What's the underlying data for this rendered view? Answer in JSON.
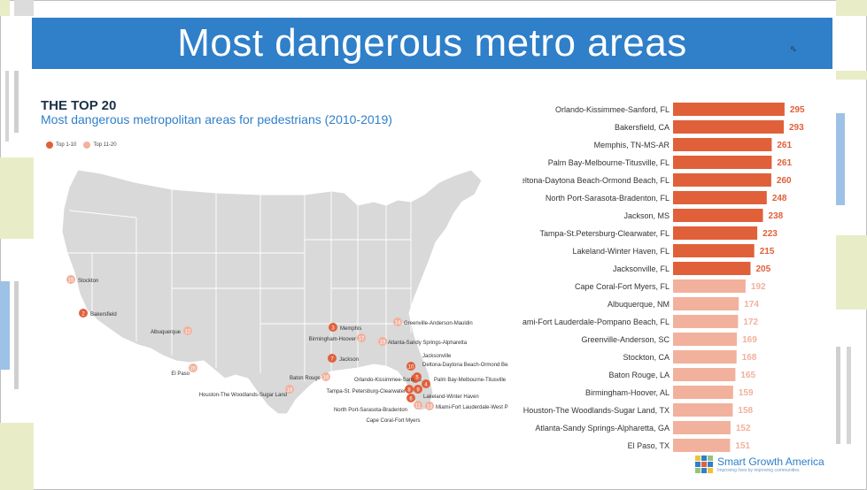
{
  "page": {
    "title": "Most dangerous metro areas",
    "heading": "THE TOP 20",
    "subheading": "Most dangerous metropolitan areas for pedestrians (2010-2019)",
    "legend": [
      {
        "label": "Top 1-10",
        "color": "#e0603a"
      },
      {
        "label": "Top 11-20",
        "color": "#f2b19c"
      }
    ],
    "logo": {
      "name": "Smart Growth America",
      "tagline": "Improving lives by improving communities"
    },
    "colors": {
      "title_bar": "#2f7fc9",
      "top10": "#e0603a",
      "top20": "#f2b19c",
      "map_fill": "#d9d9d9"
    }
  },
  "map": {
    "markers": [
      {
        "rank": "1",
        "label": "Orlando-Kissimmee-Sanford"
      },
      {
        "rank": "2",
        "label": "Bakersfield"
      },
      {
        "rank": "3",
        "label": "Memphis"
      },
      {
        "rank": "4",
        "label": "Palm Bay-Melbourne-Titusville"
      },
      {
        "rank": "5",
        "label": "Deltona-Daytona Beach-Ormond Beach"
      },
      {
        "rank": "6",
        "label": "North Port-Sarasota-Bradenton"
      },
      {
        "rank": "7",
        "label": "Jackson"
      },
      {
        "rank": "8",
        "label": "Tampa-St. Petersburg-Clearwater"
      },
      {
        "rank": "9",
        "label": "Lakeland-Winter Haven"
      },
      {
        "rank": "10",
        "label": "Jacksonville"
      },
      {
        "rank": "11",
        "label": "Cape Coral-Fort Myers"
      },
      {
        "rank": "12",
        "label": "Albuquerque"
      },
      {
        "rank": "13",
        "label": "Miami-Fort Lauderdale-West Palm Beach"
      },
      {
        "rank": "14",
        "label": "Greenville-Anderson-Mauldin"
      },
      {
        "rank": "15",
        "label": "Stockton"
      },
      {
        "rank": "16",
        "label": "Baton Rouge"
      },
      {
        "rank": "17",
        "label": "Birmingham-Hoover"
      },
      {
        "rank": "18",
        "label": "Houston-The Woodlands-Sugar Land"
      },
      {
        "rank": "19",
        "label": "Atlanta-Sandy Springs-Alpharetta"
      },
      {
        "rank": "20",
        "label": "El Paso"
      }
    ]
  },
  "chart_data": {
    "type": "bar",
    "orientation": "horizontal",
    "categories": [
      "Orlando-Kissimmee-Sanford, FL",
      "Bakersfield, CA",
      "Memphis, TN-MS-AR",
      "Palm Bay-Melbourne-Titusville, FL",
      "Deltona-Daytona Beach-Ormond Beach, FL",
      "North Port-Sarasota-Bradenton, FL",
      "Jackson, MS",
      "Tampa-St.Petersburg-Clearwater, FL",
      "Lakeland-Winter Haven, FL",
      "Jacksonville, FL",
      "Cape Coral-Fort Myers, FL",
      "Albuquerque, NM",
      "Miami-Fort Lauderdale-Pompano Beach, FL",
      "Greenville-Anderson, SC",
      "Stockton, CA",
      "Baton Rouge, LA",
      "Birmingham-Hoover, AL",
      "Houston-The Woodlands-Sugar Land, TX",
      "Atlanta-Sandy Springs-Alpharetta, GA",
      "El Paso, TX"
    ],
    "values": [
      295,
      293,
      261,
      261,
      260,
      248,
      238,
      223,
      215,
      205,
      192,
      174,
      172,
      169,
      168,
      165,
      159,
      158,
      152,
      151
    ],
    "value_labels": [
      "295",
      "293",
      "261",
      "261",
      "260",
      "248",
      "238",
      "223",
      "215",
      "205",
      "192",
      "174",
      "172",
      "169",
      "168",
      "165",
      "159",
      "158",
      "152",
      "151"
    ],
    "groups": [
      "Top 1-10",
      "Top 1-10",
      "Top 1-10",
      "Top 1-10",
      "Top 1-10",
      "Top 1-10",
      "Top 1-10",
      "Top 1-10",
      "Top 1-10",
      "Top 1-10",
      "Top 11-20",
      "Top 11-20",
      "Top 11-20",
      "Top 11-20",
      "Top 11-20",
      "Top 11-20",
      "Top 11-20",
      "Top 11-20",
      "Top 11-20",
      "Top 11-20"
    ],
    "title": "",
    "xlabel": "",
    "ylabel": "",
    "grid": false
  }
}
